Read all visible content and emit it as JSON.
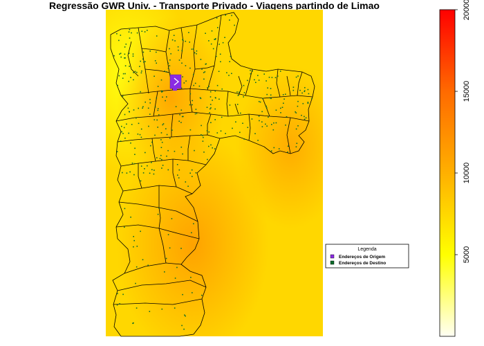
{
  "title": "Regressão GWR Univ. - Transporte Privado - Viagens partindo de Limao",
  "legend": {
    "title": "Legenda",
    "items": [
      {
        "label": "Endereços de Origem",
        "color": "#8a2be2"
      },
      {
        "label": "Endereços de Destino",
        "color": "#0b6b2a"
      }
    ]
  },
  "colorbar": {
    "min": 0,
    "max": 20000,
    "ticks": [
      5000,
      10000,
      15000,
      20000
    ],
    "tick_labels": [
      "5000",
      "10000",
      "15000",
      "20000"
    ],
    "colors": [
      "#fffef0",
      "#ffff00",
      "#ff8c00",
      "#ff0000"
    ]
  },
  "map": {
    "background_colors": [
      "#ffe000",
      "#ffb300"
    ],
    "boundary_color": "#000000"
  }
}
